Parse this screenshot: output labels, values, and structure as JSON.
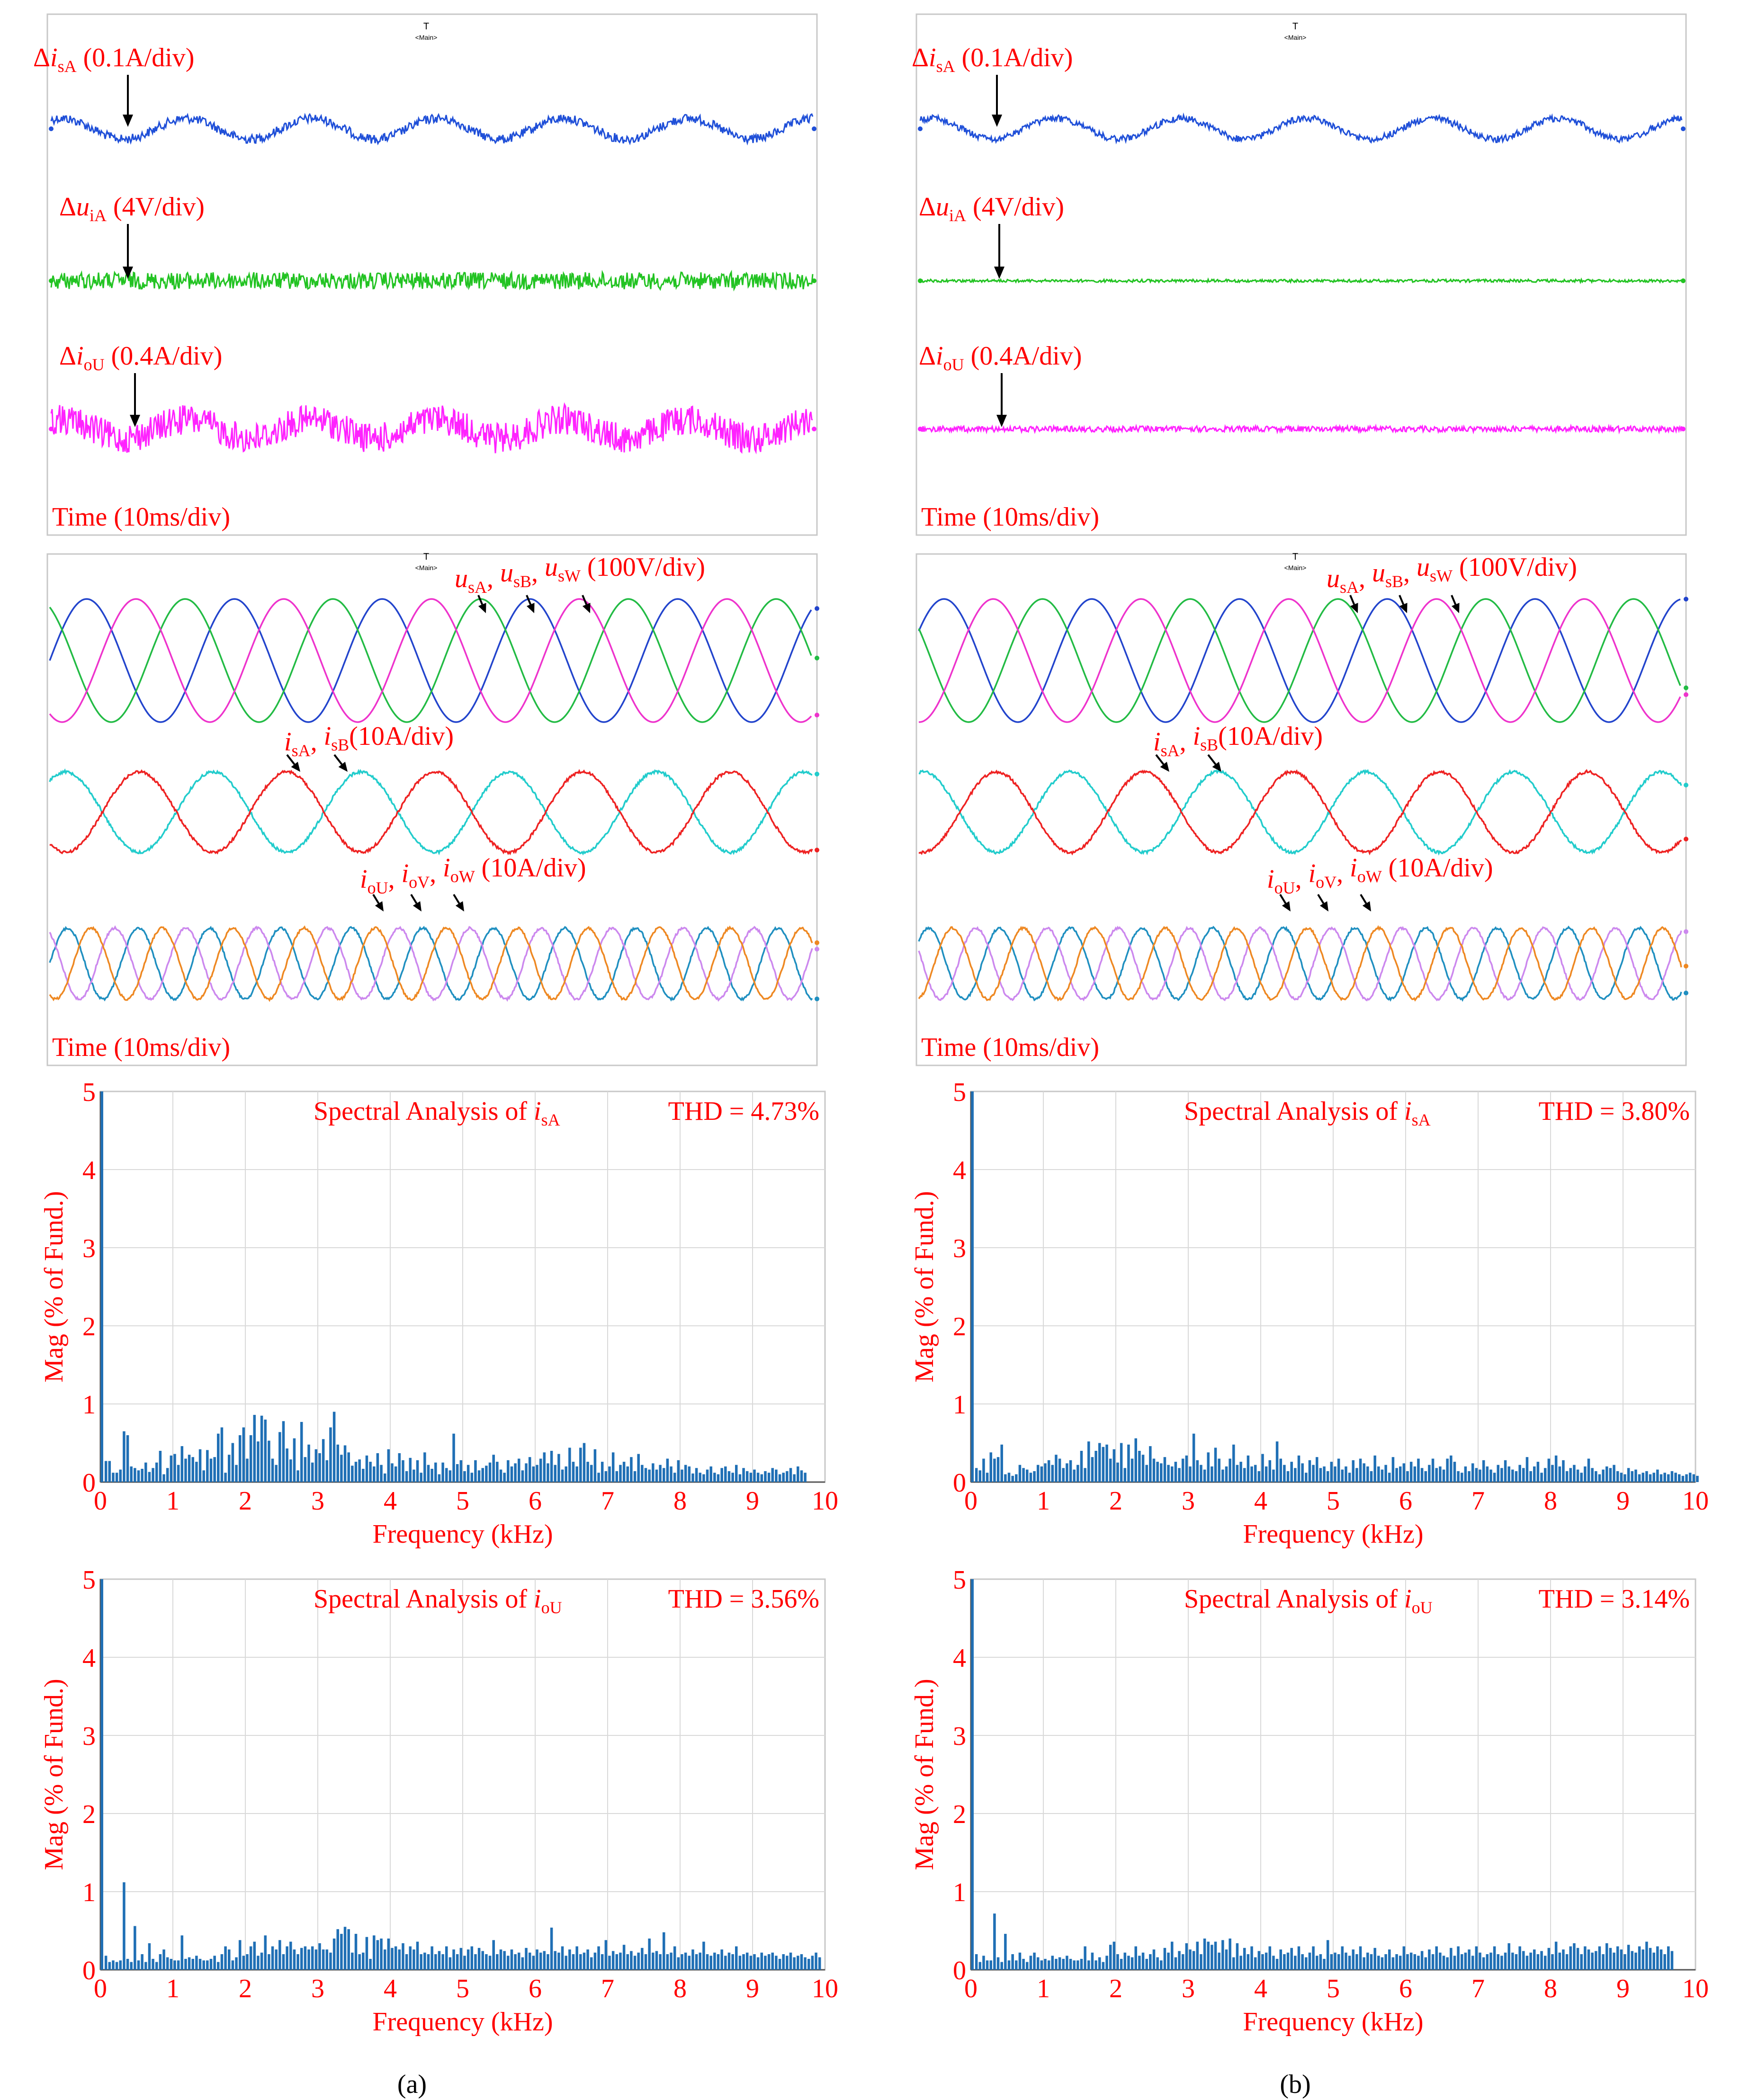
{
  "colors": {
    "label": "#ff0000",
    "grid": "#d9d9d9",
    "frame": "#c8c8c8",
    "bar": "#1f6fb5",
    "dI_sA": "#1f4fd8",
    "dU_iA": "#22c322",
    "dI_oU": "#ff22ff",
    "u_sA": "#2244cc",
    "u_sB": "#22bb44",
    "u_sW": "#ee33cc",
    "i_sA": "#22cccc",
    "i_sB": "#ee2222",
    "i_oU": "#1f8fc0",
    "i_oV": "#cc88ee",
    "i_oW": "#ee8822"
  },
  "columns": [
    {
      "caption": "(a)",
      "deviation": {
        "label_1": {
          "sym": "Δ",
          "it": "i",
          "sub": "sA",
          "text": " (0.1A/div)"
        },
        "label_2": {
          "sym": "Δ",
          "it": "u",
          "sub": "iA",
          "text": " (4V/div)"
        },
        "label_3": {
          "sym": "Δ",
          "it": "i",
          "sub": "oU",
          "text": " (0.4A/div)"
        },
        "time_label": "Time (10ms/div)",
        "marker": "Main",
        "noise": [
          0.08,
          0.18,
          0.32
        ]
      },
      "waves": {
        "u_label": {
          "a": "u",
          "as": "sA",
          "b": "u",
          "bs": "sB",
          "c": "u",
          "cs": "sW",
          "text": " (100V/div)"
        },
        "i_label": {
          "a": "i",
          "as": "sA",
          "b": "i",
          "bs": "sB",
          "text": "(10A/div)"
        },
        "o_label": {
          "a": "i",
          "as": "oU",
          "b": "i",
          "bs": "oV",
          "c": "i",
          "cs": "oW",
          "text": " (10A/div)"
        },
        "time_label": "Time (10ms/div)",
        "marker": "Main"
      }
    },
    {
      "caption": "(b)",
      "deviation": {
        "label_1": {
          "sym": "Δ",
          "it": "i",
          "sub": "sA",
          "text": " (0.1A/div)"
        },
        "label_2": {
          "sym": "Δ",
          "it": "u",
          "sub": "iA",
          "text": " (4V/div)"
        },
        "label_3": {
          "sym": "Δ",
          "it": "i",
          "sub": "oU",
          "text": " (0.4A/div)"
        },
        "time_label": "Time (10ms/div)",
        "marker": "Main",
        "noise": [
          0.06,
          0.03,
          0.06
        ]
      },
      "waves": {
        "u_label": {
          "a": "u",
          "as": "sA",
          "b": "u",
          "bs": "sB",
          "c": "u",
          "cs": "sW",
          "text": " (100V/div)"
        },
        "i_label": {
          "a": "i",
          "as": "sA",
          "b": "i",
          "bs": "sB",
          "text": "(10A/div)"
        },
        "o_label": {
          "a": "i",
          "as": "oU",
          "b": "i",
          "bs": "oV",
          "c": "i",
          "cs": "oW",
          "text": " (10A/div)"
        },
        "time_label": "Time (10ms/div)",
        "marker": "Main"
      }
    }
  ],
  "chart_data": [
    {
      "type": "bar",
      "panel": "(a) spectrum i_sA",
      "title": "Spectral Analysis of ",
      "title_it": "i",
      "title_sub": "sA",
      "thd": "THD = 4.73%",
      "xlabel": "Frequency (kHz)",
      "ylabel": "Mag (% of Fund.)",
      "xlim": [
        0,
        10
      ],
      "ylim": [
        0,
        5
      ],
      "xticks": [
        "0",
        "1",
        "2",
        "3",
        "4",
        "5",
        "6",
        "7",
        "8",
        "9",
        "10"
      ],
      "yticks": [
        "0",
        "1",
        "2",
        "3",
        "4",
        "5"
      ],
      "fundamental": 100,
      "bin_khz": 0.05,
      "values": [
        0.27,
        0.27,
        0.12,
        0.12,
        0.16,
        0.65,
        0.6,
        0.2,
        0.18,
        0.15,
        0.17,
        0.25,
        0.13,
        0.18,
        0.25,
        0.4,
        0.1,
        0.18,
        0.34,
        0.36,
        0.22,
        0.46,
        0.3,
        0.35,
        0.32,
        0.26,
        0.42,
        0.15,
        0.41,
        0.3,
        0.32,
        0.62,
        0.7,
        0.12,
        0.35,
        0.5,
        0.22,
        0.6,
        0.7,
        0.3,
        0.6,
        0.86,
        0.52,
        0.85,
        0.8,
        0.53,
        0.3,
        0.22,
        0.64,
        0.78,
        0.43,
        0.29,
        0.56,
        0.15,
        0.77,
        0.32,
        0.48,
        0.25,
        0.42,
        0.37,
        0.55,
        0.28,
        0.7,
        0.9,
        0.48,
        0.35,
        0.47,
        0.38,
        0.21,
        0.26,
        0.29,
        0.17,
        0.34,
        0.26,
        0.2,
        0.37,
        0.22,
        0.11,
        0.42,
        0.24,
        0.2,
        0.37,
        0.28,
        0.14,
        0.31,
        0.16,
        0.28,
        0.12,
        0.38,
        0.22,
        0.17,
        0.25,
        0.1,
        0.25,
        0.18,
        0.15,
        0.62,
        0.23,
        0.28,
        0.14,
        0.22,
        0.12,
        0.28,
        0.15,
        0.18,
        0.21,
        0.25,
        0.35,
        0.26,
        0.16,
        0.12,
        0.28,
        0.2,
        0.24,
        0.3,
        0.15,
        0.24,
        0.32,
        0.2,
        0.22,
        0.3,
        0.38,
        0.24,
        0.4,
        0.22,
        0.36,
        0.16,
        0.2,
        0.44,
        0.26,
        0.2,
        0.44,
        0.5,
        0.26,
        0.22,
        0.42,
        0.12,
        0.26,
        0.14,
        0.2,
        0.38,
        0.14,
        0.22,
        0.26,
        0.2,
        0.32,
        0.14,
        0.36,
        0.22,
        0.18,
        0.16,
        0.24,
        0.16,
        0.22,
        0.18,
        0.3,
        0.2,
        0.12,
        0.28,
        0.16,
        0.22,
        0.2,
        0.11,
        0.18,
        0.12,
        0.1,
        0.16,
        0.2,
        0.12,
        0.1,
        0.18,
        0.2,
        0.14,
        0.12,
        0.22,
        0.1,
        0.18,
        0.14,
        0.12,
        0.16,
        0.12,
        0.1,
        0.14,
        0.12,
        0.18,
        0.16,
        0.1,
        0.12,
        0.14,
        0.18,
        0.1,
        0.2,
        0.15,
        0.12
      ]
    },
    {
      "type": "bar",
      "panel": "(b) spectrum i_sA",
      "title": "Spectral Analysis of ",
      "title_it": "i",
      "title_sub": "sA",
      "thd": "THD = 3.80%",
      "xlabel": "Frequency (kHz)",
      "ylabel": "Mag (% of Fund.)",
      "xlim": [
        0,
        10
      ],
      "ylim": [
        0,
        5
      ],
      "xticks": [
        "0",
        "1",
        "2",
        "3",
        "4",
        "5",
        "6",
        "7",
        "8",
        "9",
        "10"
      ],
      "yticks": [
        "0",
        "1",
        "2",
        "3",
        "4",
        "5"
      ],
      "fundamental": 100,
      "bin_khz": 0.05,
      "values": [
        0.18,
        0.15,
        0.3,
        0.12,
        0.38,
        0.3,
        0.32,
        0.48,
        0.1,
        0.12,
        0.08,
        0.1,
        0.22,
        0.18,
        0.16,
        0.12,
        0.14,
        0.22,
        0.2,
        0.24,
        0.28,
        0.22,
        0.35,
        0.3,
        0.18,
        0.24,
        0.28,
        0.16,
        0.22,
        0.4,
        0.18,
        0.52,
        0.32,
        0.4,
        0.5,
        0.45,
        0.48,
        0.3,
        0.42,
        0.25,
        0.5,
        0.18,
        0.48,
        0.3,
        0.56,
        0.4,
        0.35,
        0.22,
        0.46,
        0.3,
        0.26,
        0.24,
        0.32,
        0.22,
        0.2,
        0.26,
        0.18,
        0.3,
        0.34,
        0.2,
        0.62,
        0.28,
        0.22,
        0.16,
        0.38,
        0.2,
        0.44,
        0.3,
        0.16,
        0.2,
        0.3,
        0.48,
        0.22,
        0.26,
        0.18,
        0.34,
        0.2,
        0.22,
        0.14,
        0.36,
        0.2,
        0.28,
        0.16,
        0.52,
        0.3,
        0.22,
        0.14,
        0.26,
        0.18,
        0.34,
        0.24,
        0.12,
        0.28,
        0.22,
        0.32,
        0.18,
        0.2,
        0.14,
        0.26,
        0.2,
        0.3,
        0.16,
        0.2,
        0.12,
        0.28,
        0.18,
        0.3,
        0.24,
        0.2,
        0.14,
        0.34,
        0.2,
        0.16,
        0.22,
        0.12,
        0.32,
        0.18,
        0.2,
        0.24,
        0.14,
        0.26,
        0.2,
        0.3,
        0.18,
        0.14,
        0.22,
        0.3,
        0.18,
        0.2,
        0.16,
        0.3,
        0.34,
        0.26,
        0.14,
        0.12,
        0.2,
        0.14,
        0.24,
        0.18,
        0.16,
        0.28,
        0.2,
        0.16,
        0.12,
        0.22,
        0.18,
        0.28,
        0.2,
        0.16,
        0.14,
        0.22,
        0.18,
        0.32,
        0.14,
        0.2,
        0.26,
        0.12,
        0.18,
        0.3,
        0.22,
        0.34,
        0.2,
        0.28,
        0.14,
        0.18,
        0.22,
        0.16,
        0.12,
        0.2,
        0.3,
        0.18,
        0.14,
        0.1,
        0.16,
        0.2,
        0.18,
        0.22,
        0.14,
        0.12,
        0.1,
        0.18,
        0.14,
        0.16,
        0.1,
        0.12,
        0.14,
        0.1,
        0.12,
        0.16,
        0.1,
        0.12,
        0.1,
        0.14,
        0.12,
        0.1,
        0.08,
        0.1,
        0.12,
        0.1,
        0.08
      ]
    },
    {
      "type": "bar",
      "panel": "(a) spectrum i_oU",
      "title": "Spectral Analysis of ",
      "title_it": "i",
      "title_sub": "oU",
      "thd": "THD = 3.56%",
      "xlabel": "Frequency (kHz)",
      "ylabel": "Mag (% of Fund.)",
      "xlim": [
        0,
        10
      ],
      "ylim": [
        0,
        5
      ],
      "xticks": [
        "0",
        "1",
        "2",
        "3",
        "4",
        "5",
        "6",
        "7",
        "8",
        "9",
        "10"
      ],
      "yticks": [
        "0",
        "1",
        "2",
        "3",
        "4",
        "5"
      ],
      "fundamental": 100,
      "bin_khz": 0.05,
      "values": [
        0.18,
        0.1,
        0.12,
        0.1,
        0.12,
        1.12,
        0.14,
        0.1,
        0.56,
        0.12,
        0.2,
        0.1,
        0.34,
        0.14,
        0.1,
        0.2,
        0.26,
        0.16,
        0.14,
        0.12,
        0.12,
        0.44,
        0.14,
        0.16,
        0.14,
        0.18,
        0.14,
        0.12,
        0.12,
        0.14,
        0.18,
        0.1,
        0.2,
        0.3,
        0.26,
        0.12,
        0.16,
        0.38,
        0.18,
        0.2,
        0.3,
        0.36,
        0.18,
        0.22,
        0.44,
        0.2,
        0.3,
        0.26,
        0.38,
        0.2,
        0.3,
        0.36,
        0.26,
        0.2,
        0.28,
        0.3,
        0.26,
        0.3,
        0.26,
        0.34,
        0.26,
        0.26,
        0.22,
        0.4,
        0.52,
        0.46,
        0.55,
        0.52,
        0.22,
        0.46,
        0.2,
        0.22,
        0.42,
        0.14,
        0.44,
        0.38,
        0.4,
        0.26,
        0.4,
        0.28,
        0.3,
        0.26,
        0.34,
        0.2,
        0.3,
        0.26,
        0.36,
        0.2,
        0.22,
        0.2,
        0.3,
        0.2,
        0.24,
        0.2,
        0.3,
        0.16,
        0.26,
        0.2,
        0.28,
        0.18,
        0.26,
        0.3,
        0.2,
        0.28,
        0.24,
        0.2,
        0.18,
        0.38,
        0.2,
        0.26,
        0.24,
        0.18,
        0.26,
        0.2,
        0.22,
        0.16,
        0.28,
        0.22,
        0.18,
        0.26,
        0.22,
        0.24,
        0.2,
        0.54,
        0.24,
        0.22,
        0.3,
        0.18,
        0.26,
        0.2,
        0.3,
        0.2,
        0.22,
        0.26,
        0.16,
        0.22,
        0.3,
        0.2,
        0.38,
        0.18,
        0.24,
        0.2,
        0.22,
        0.32,
        0.2,
        0.24,
        0.18,
        0.22,
        0.28,
        0.2,
        0.4,
        0.22,
        0.24,
        0.2,
        0.48,
        0.2,
        0.22,
        0.3,
        0.16,
        0.2,
        0.22,
        0.18,
        0.26,
        0.2,
        0.22,
        0.36,
        0.2,
        0.18,
        0.22,
        0.2,
        0.26,
        0.18,
        0.22,
        0.2,
        0.3,
        0.18,
        0.2,
        0.22,
        0.18,
        0.2,
        0.16,
        0.22,
        0.18,
        0.2,
        0.22,
        0.18,
        0.14,
        0.2,
        0.18,
        0.22,
        0.16,
        0.18,
        0.2,
        0.16,
        0.14,
        0.18,
        0.22,
        0.16
      ]
    },
    {
      "type": "bar",
      "panel": "(b) spectrum i_oU",
      "title": "Spectral Analysis of ",
      "title_it": "i",
      "title_sub": "oU",
      "thd": "THD = 3.14%",
      "xlabel": "Frequency (kHz)",
      "ylabel": "Mag (% of Fund.)",
      "xlim": [
        0,
        10
      ],
      "ylim": [
        0,
        5
      ],
      "xticks": [
        "0",
        "1",
        "2",
        "3",
        "4",
        "5",
        "6",
        "7",
        "8",
        "9",
        "10"
      ],
      "yticks": [
        "0",
        "1",
        "2",
        "3",
        "4",
        "5"
      ],
      "fundamental": 100,
      "bin_khz": 0.05,
      "values": [
        0.2,
        0.1,
        0.18,
        0.12,
        0.12,
        0.72,
        0.16,
        0.1,
        0.46,
        0.12,
        0.2,
        0.12,
        0.22,
        0.14,
        0.1,
        0.18,
        0.22,
        0.16,
        0.12,
        0.14,
        0.12,
        0.18,
        0.14,
        0.16,
        0.14,
        0.18,
        0.14,
        0.12,
        0.12,
        0.14,
        0.3,
        0.12,
        0.22,
        0.12,
        0.16,
        0.1,
        0.18,
        0.32,
        0.36,
        0.2,
        0.14,
        0.22,
        0.18,
        0.16,
        0.3,
        0.18,
        0.22,
        0.14,
        0.2,
        0.26,
        0.16,
        0.12,
        0.28,
        0.22,
        0.36,
        0.16,
        0.24,
        0.2,
        0.34,
        0.26,
        0.24,
        0.36,
        0.2,
        0.4,
        0.36,
        0.32,
        0.36,
        0.22,
        0.38,
        0.26,
        0.4,
        0.16,
        0.34,
        0.18,
        0.28,
        0.2,
        0.3,
        0.16,
        0.24,
        0.2,
        0.22,
        0.3,
        0.18,
        0.14,
        0.26,
        0.2,
        0.22,
        0.28,
        0.18,
        0.3,
        0.2,
        0.16,
        0.22,
        0.3,
        0.18,
        0.2,
        0.14,
        0.38,
        0.2,
        0.22,
        0.2,
        0.3,
        0.22,
        0.18,
        0.26,
        0.2,
        0.3,
        0.16,
        0.22,
        0.2,
        0.28,
        0.18,
        0.16,
        0.2,
        0.26,
        0.16,
        0.2,
        0.18,
        0.3,
        0.2,
        0.22,
        0.2,
        0.18,
        0.24,
        0.16,
        0.26,
        0.2,
        0.3,
        0.22,
        0.18,
        0.16,
        0.28,
        0.18,
        0.3,
        0.2,
        0.22,
        0.26,
        0.18,
        0.3,
        0.22,
        0.16,
        0.2,
        0.22,
        0.3,
        0.2,
        0.18,
        0.22,
        0.34,
        0.22,
        0.2,
        0.3,
        0.24,
        0.18,
        0.22,
        0.26,
        0.2,
        0.24,
        0.18,
        0.28,
        0.2,
        0.36,
        0.22,
        0.26,
        0.2,
        0.3,
        0.34,
        0.28,
        0.2,
        0.3,
        0.26,
        0.22,
        0.24,
        0.3,
        0.2,
        0.34,
        0.28,
        0.22,
        0.3,
        0.26,
        0.2,
        0.32,
        0.24,
        0.22,
        0.3,
        0.26,
        0.36,
        0.28,
        0.22,
        0.3,
        0.26,
        0.2,
        0.3,
        0.24
      ]
    }
  ]
}
